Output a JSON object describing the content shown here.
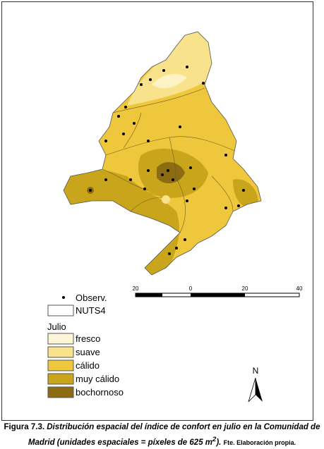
{
  "legend": {
    "points": "Observ.",
    "boundaries": "NUTS4",
    "title": "Julio",
    "classes": [
      "fresco",
      "suave",
      "cálido",
      "muy cálido",
      "bochornoso"
    ]
  },
  "scale_bar": {
    "labels": [
      "20",
      "0",
      "20",
      "40"
    ]
  },
  "north": "N",
  "caption": {
    "label": "Figura 7.3.",
    "text": "Distribución espacial del índice de confort en julio en la Comunidad de Madrid (unidades espaciales = píxeles de 625 m",
    "superscript": "2",
    "text_end": ").",
    "source": "Fte. Elaboración propia."
  }
}
